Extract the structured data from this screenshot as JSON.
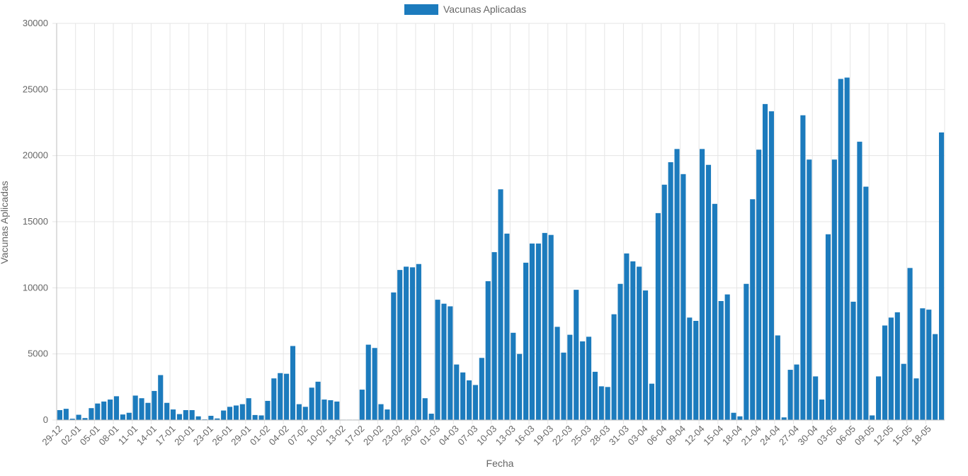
{
  "chart_data": {
    "type": "bar",
    "title": "",
    "xlabel": "Fecha",
    "ylabel": "Vacunas Aplicadas",
    "ylim": [
      0,
      30000
    ],
    "yticks": [
      0,
      5000,
      10000,
      15000,
      20000,
      25000,
      30000
    ],
    "grid": true,
    "legend_position": "top-center",
    "colors": {
      "bar": "#1c7bbd",
      "grid": "#e5e5e5",
      "text": "#666666"
    },
    "series": [
      {
        "name": "Vacunas Aplicadas",
        "values": [
          750,
          850,
          100,
          400,
          150,
          900,
          1250,
          1400,
          1550,
          1800,
          420,
          550,
          1850,
          1650,
          1300,
          2200,
          3400,
          1300,
          800,
          450,
          750,
          750,
          280,
          50,
          320,
          120,
          720,
          1000,
          1100,
          1200,
          1650,
          380,
          350,
          1450,
          3150,
          3550,
          3500,
          5600,
          1200,
          1000,
          2450,
          2900,
          1550,
          1500,
          1400,
          30,
          30,
          30,
          2300,
          5700,
          5450,
          1200,
          800,
          9650,
          11350,
          11600,
          11550,
          11800,
          1650,
          480,
          9100,
          8800,
          8600,
          4200,
          3600,
          3000,
          2650,
          4700,
          10500,
          12700,
          17450,
          14100,
          6600,
          5000,
          11900,
          13350,
          13350,
          14150,
          14000,
          7050,
          5100,
          6450,
          9850,
          5950,
          6300,
          3650,
          2550,
          2500,
          8000,
          10300,
          12600,
          12000,
          11600,
          9800,
          2750,
          15650,
          17800,
          19500,
          20500,
          18600,
          7750,
          7500,
          20500,
          19300,
          16350,
          9000,
          9500,
          550,
          280,
          10300,
          16700,
          20450,
          23900,
          23350,
          6400,
          200,
          3800,
          4200,
          23050,
          19700,
          3300,
          1550,
          14050,
          19700,
          25800,
          25900,
          8950,
          21050,
          17650,
          350,
          3300,
          7150,
          7750,
          8150,
          4250,
          11500,
          3150,
          8450,
          8350,
          6500,
          21750
        ]
      }
    ],
    "tick_labels": [
      "29-12",
      "02-01",
      "05-01",
      "08-01",
      "11-01",
      "14-01",
      "17-01",
      "20-01",
      "23-01",
      "26-01",
      "29-01",
      "01-02",
      "04-02",
      "07-02",
      "10-02",
      "13-02",
      "17-02",
      "20-02",
      "23-02",
      "26-02",
      "01-03",
      "04-03",
      "07-03",
      "10-03",
      "13-03",
      "16-03",
      "19-03",
      "22-03",
      "25-03",
      "28-03",
      "31-03",
      "03-04",
      "06-04",
      "09-04",
      "12-04",
      "15-04",
      "18-04",
      "21-04",
      "24-04",
      "27-04",
      "30-04",
      "03-05",
      "06-05",
      "09-05",
      "12-05",
      "15-05",
      "18-05"
    ],
    "tick_every": 3
  }
}
